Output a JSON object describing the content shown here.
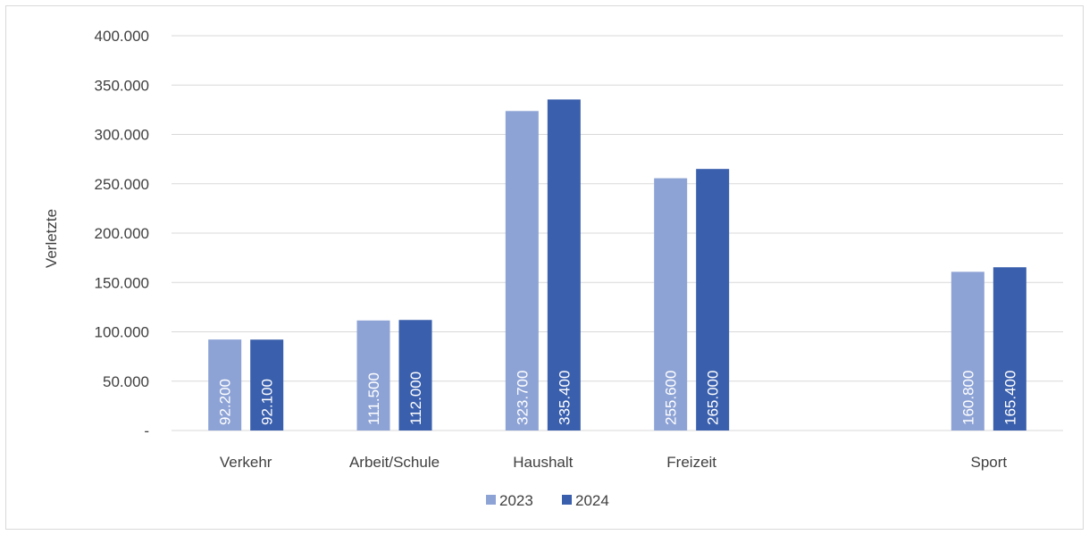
{
  "chart_data": {
    "type": "bar",
    "title": "",
    "xlabel": "",
    "ylabel": "Verletzte",
    "ylim": [
      0,
      400000
    ],
    "yticks": [
      0,
      50000,
      100000,
      150000,
      200000,
      250000,
      300000,
      350000,
      400000
    ],
    "ytick_labels": [
      "-",
      "50.000",
      "100.000",
      "150.000",
      "200.000",
      "250.000",
      "300.000",
      "350.000",
      "400.000"
    ],
    "categories": [
      "Verkehr",
      "Arbeit/Schule",
      "Haushalt",
      "Freizeit",
      "",
      "Sport"
    ],
    "grid": true,
    "legend_position": "bottom",
    "series": [
      {
        "name": "2023",
        "color": "#8ea3d5",
        "values": [
          92200,
          111500,
          323700,
          255600,
          null,
          160800
        ],
        "labels": [
          "92.200",
          "111.500",
          "323.700",
          "255.600",
          "",
          "160.800"
        ]
      },
      {
        "name": "2024",
        "color": "#3a5fac",
        "values": [
          92100,
          112000,
          335400,
          265000,
          null,
          165400
        ],
        "labels": [
          "92.100",
          "112.000",
          "335.400",
          "265.000",
          "",
          "165.400"
        ]
      }
    ]
  }
}
